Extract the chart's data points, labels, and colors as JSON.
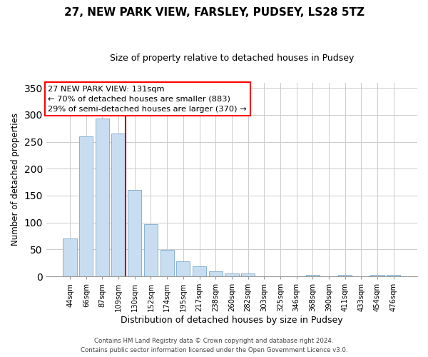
{
  "title": "27, NEW PARK VIEW, FARSLEY, PUDSEY, LS28 5TZ",
  "subtitle": "Size of property relative to detached houses in Pudsey",
  "xlabel": "Distribution of detached houses by size in Pudsey",
  "ylabel": "Number of detached properties",
  "categories": [
    "44sqm",
    "66sqm",
    "87sqm",
    "109sqm",
    "130sqm",
    "152sqm",
    "174sqm",
    "195sqm",
    "217sqm",
    "238sqm",
    "260sqm",
    "282sqm",
    "303sqm",
    "325sqm",
    "346sqm",
    "368sqm",
    "390sqm",
    "411sqm",
    "433sqm",
    "454sqm",
    "476sqm"
  ],
  "values": [
    70,
    260,
    293,
    265,
    160,
    97,
    49,
    28,
    18,
    10,
    6,
    5,
    0,
    0,
    0,
    3,
    0,
    3,
    0,
    3,
    3
  ],
  "bar_color": "#c8ddf0",
  "bar_edge_color": "#7aaacc",
  "annotation_line1": "27 NEW PARK VIEW: 131sqm",
  "annotation_line2": "← 70% of detached houses are smaller (883)",
  "annotation_line3": "29% of semi-detached houses are larger (370) →",
  "marker_bar_index": 3,
  "marker_line_color": "#aa0000",
  "ylim": [
    0,
    360
  ],
  "yticks": [
    0,
    50,
    100,
    150,
    200,
    250,
    300,
    350
  ],
  "footer_line1": "Contains HM Land Registry data © Crown copyright and database right 2024.",
  "footer_line2": "Contains public sector information licensed under the Open Government Licence v3.0.",
  "background_color": "#ffffff",
  "grid_color": "#cccccc",
  "title_fontsize": 11,
  "subtitle_fontsize": 9,
  "ylabel_fontsize": 8.5,
  "xlabel_fontsize": 9
}
